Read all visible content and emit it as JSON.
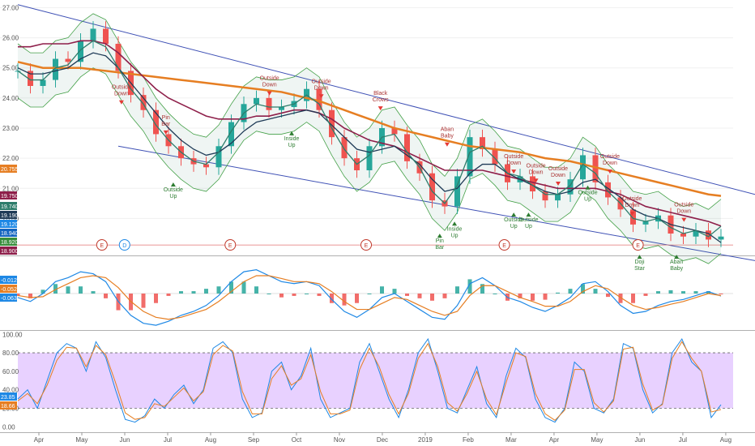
{
  "chart_data": [
    {
      "type": "line",
      "pane": "price",
      "ylim": [
        18.8,
        27.2
      ],
      "y_ticks": [
        "27.00",
        "26.00",
        "25.00",
        "24.00",
        "23.00",
        "22.00",
        "21.00",
        "20.00"
      ],
      "x_ticks": [
        "Apr",
        "May",
        "Jun",
        "Jul",
        "Aug",
        "Sep",
        "Oct",
        "Nov",
        "Dec",
        "2019",
        "Feb",
        "Mar",
        "Apr",
        "May",
        "Jun",
        "Jul",
        "Aug"
      ],
      "price_badges": [
        {
          "text": "20.755",
          "color": "#e67e22",
          "value": 20.755
        },
        {
          "text": "19.750",
          "color": "#8e1f4a",
          "value": 19.75
        },
        {
          "text": "19.740",
          "color": "#2e7d6b",
          "value": 19.74
        },
        {
          "text": "19.190",
          "color": "#1f3b57",
          "value": 19.19
        },
        {
          "text": "19.120",
          "color": "#1e88e5",
          "value": 19.12
        },
        {
          "text": "18.940",
          "color": "#1565c0",
          "value": 18.94
        },
        {
          "text": "18.920",
          "color": "#388e3c",
          "value": 18.92
        },
        {
          "text": "18.900",
          "color": "#8e1f4a",
          "value": 18.9
        }
      ],
      "series": [
        {
          "key": "close",
          "color": "#333333",
          "values": [
            24.9,
            24.4,
            24.6,
            25.3,
            25.2,
            25.9,
            26.3,
            25.8,
            24.9,
            24.1,
            23.6,
            22.8,
            22.4,
            22.0,
            21.8,
            21.7,
            22.4,
            23.2,
            23.8,
            24.0,
            23.6,
            23.7,
            23.9,
            24.3,
            23.6,
            22.7,
            22.0,
            21.6,
            22.4,
            23.0,
            22.8,
            21.9,
            21.5,
            20.6,
            20.4,
            21.4,
            22.7,
            22.3,
            21.8,
            21.2,
            21.4,
            20.9,
            20.6,
            20.8,
            21.3,
            22.1,
            21.2,
            20.7,
            20.3,
            19.8,
            19.9,
            20.1,
            19.5,
            19.4,
            19.6,
            19.3,
            19.4
          ]
        },
        {
          "key": "ma200",
          "color": "#e67e22",
          "values": [
            25.2,
            25.1,
            25.0,
            25.0,
            25.0,
            25.0,
            24.95,
            24.9,
            24.85,
            24.8,
            24.75,
            24.7,
            24.65,
            24.6,
            24.55,
            24.5,
            24.45,
            24.4,
            24.35,
            24.3,
            24.25,
            24.2,
            24.1,
            24.0,
            23.9,
            23.75,
            23.6,
            23.45,
            23.3,
            23.15,
            23.0,
            22.9,
            22.8,
            22.7,
            22.6,
            22.5,
            22.4,
            22.35,
            22.3,
            22.25,
            22.2,
            22.1,
            22.0,
            21.95,
            21.9,
            21.8,
            21.7,
            21.6,
            21.5,
            21.4,
            21.3,
            21.2,
            21.1,
            21.0,
            20.9,
            20.8,
            20.75
          ]
        },
        {
          "key": "ma100",
          "color": "#8e1f4a",
          "values": [
            25.7,
            25.7,
            25.8,
            25.8,
            25.8,
            25.9,
            25.9,
            25.8,
            25.5,
            25.1,
            24.7,
            24.3,
            24.0,
            23.8,
            23.6,
            23.4,
            23.3,
            23.3,
            23.3,
            23.4,
            23.4,
            23.5,
            23.6,
            23.6,
            23.5,
            23.3,
            23.0,
            22.8,
            22.6,
            22.5,
            22.4,
            22.2,
            22.0,
            21.8,
            21.6,
            21.6,
            21.6,
            21.6,
            21.5,
            21.4,
            21.3,
            21.2,
            21.1,
            21.0,
            21.0,
            21.0,
            21.0,
            20.9,
            20.8,
            20.6,
            20.4,
            20.3,
            20.2,
            20.1,
            20.0,
            19.9,
            19.75
          ]
        },
        {
          "key": "ma50",
          "color": "#1f3b57",
          "values": [
            25.0,
            24.8,
            24.8,
            24.9,
            25.0,
            25.3,
            25.5,
            25.4,
            25.0,
            24.5,
            24.0,
            23.5,
            23.0,
            22.6,
            22.3,
            22.1,
            22.2,
            22.5,
            22.9,
            23.2,
            23.3,
            23.4,
            23.5,
            23.6,
            23.5,
            23.1,
            22.7,
            22.3,
            22.2,
            22.3,
            22.4,
            22.1,
            21.8,
            21.3,
            20.9,
            21.0,
            21.5,
            21.8,
            21.8,
            21.5,
            21.3,
            21.1,
            20.9,
            20.8,
            20.9,
            21.2,
            21.3,
            21.0,
            20.7,
            20.3,
            20.1,
            20.0,
            19.8,
            19.7,
            19.6,
            19.5,
            19.2
          ]
        },
        {
          "key": "ma20",
          "color": "#2e7d6b",
          "values": [
            24.9,
            24.6,
            24.6,
            25.0,
            25.1,
            25.6,
            25.9,
            25.7,
            25.0,
            24.3,
            23.8,
            23.1,
            22.6,
            22.2,
            21.9,
            21.8,
            22.2,
            22.9,
            23.5,
            23.8,
            23.7,
            23.7,
            23.8,
            24.1,
            23.8,
            23.0,
            22.3,
            21.8,
            22.1,
            22.7,
            22.8,
            22.2,
            21.7,
            20.9,
            20.5,
            21.1,
            22.2,
            22.4,
            22.0,
            21.5,
            21.4,
            21.1,
            20.8,
            20.8,
            21.1,
            21.8,
            21.5,
            20.9,
            20.5,
            20.0,
            19.9,
            20.0,
            19.7,
            19.5,
            19.6,
            19.4,
            19.74
          ]
        }
      ],
      "channel": {
        "upper": [
          27.1,
          20.8
        ],
        "lower": [
          22.4,
          18.6
        ]
      },
      "pattern_labels": [
        {
          "text": "Outside Down",
          "at": [
            14,
            24.3
          ],
          "kind": "bear"
        },
        {
          "text": "Pin Bar",
          "at": [
            20,
            23.3
          ],
          "kind": "bear"
        },
        {
          "text": "Outside Up",
          "at": [
            21,
            20.9
          ],
          "kind": "bull"
        },
        {
          "text": "Outside Down",
          "at": [
            34,
            24.6
          ],
          "kind": "bear"
        },
        {
          "text": "Inside Up",
          "at": [
            37,
            22.6
          ],
          "kind": "bull"
        },
        {
          "text": "Outside Down",
          "at": [
            41,
            24.5
          ],
          "kind": "bear"
        },
        {
          "text": "Black Crows",
          "at": [
            49,
            24.1
          ],
          "kind": "bear"
        },
        {
          "text": "Aban Baby",
          "at": [
            58,
            22.9
          ],
          "kind": "bear"
        },
        {
          "text": "Pin Bar",
          "at": [
            57,
            19.2
          ],
          "kind": "bull"
        },
        {
          "text": "Inside Up",
          "at": [
            59,
            19.6
          ],
          "kind": "bull"
        },
        {
          "text": "Outside Down",
          "at": [
            67,
            22.0
          ],
          "kind": "bear"
        },
        {
          "text": "Outside Up",
          "at": [
            67,
            19.9
          ],
          "kind": "bull"
        },
        {
          "text": "Outside Up",
          "at": [
            69,
            19.9
          ],
          "kind": "bull"
        },
        {
          "text": "Outside Down",
          "at": [
            70,
            21.7
          ],
          "kind": "bear"
        },
        {
          "text": "Outside Down",
          "at": [
            73,
            21.6
          ],
          "kind": "bear"
        },
        {
          "text": "Outside Up",
          "at": [
            77,
            20.8
          ],
          "kind": "bull"
        },
        {
          "text": "Outside Down",
          "at": [
            80,
            22.0
          ],
          "kind": "bear"
        },
        {
          "text": "Outside Down",
          "at": [
            83,
            20.6
          ],
          "kind": "bear"
        },
        {
          "text": "Outside Down",
          "at": [
            90,
            20.4
          ],
          "kind": "bear"
        },
        {
          "text": "Doji Star",
          "at": [
            84,
            18.5
          ],
          "kind": "bull"
        },
        {
          "text": "Aban Baby",
          "at": [
            89,
            18.5
          ],
          "kind": "bull"
        }
      ],
      "events": [
        {
          "text": "E",
          "x": 0.135,
          "color": "#c0392b"
        },
        {
          "text": "D",
          "x": 0.165,
          "color": "#1e88e5"
        },
        {
          "text": "E",
          "x": 0.305,
          "color": "#c0392b"
        },
        {
          "text": "E",
          "x": 0.485,
          "color": "#c0392b"
        },
        {
          "text": "E",
          "x": 0.668,
          "color": "#c0392b"
        },
        {
          "text": "E",
          "x": 0.845,
          "color": "#c0392b"
        }
      ],
      "horizontal_line": 19.12
    },
    {
      "type": "bar",
      "pane": "macd",
      "ylim": [
        -0.9,
        0.9
      ],
      "badges": [
        {
          "text": "-0.012",
          "color": "#1e88e5",
          "value": -0.012
        },
        {
          "text": "-0.052",
          "color": "#e67e22",
          "value": -0.052
        },
        {
          "text": "-0.063",
          "color": "#1e88e5",
          "value": -0.063
        }
      ],
      "series": [
        {
          "name": "MACD",
          "color": "#1e88e5",
          "values": [
            -0.1,
            -0.2,
            0.0,
            0.3,
            0.4,
            0.55,
            0.5,
            0.3,
            -0.2,
            -0.55,
            -0.75,
            -0.8,
            -0.7,
            -0.55,
            -0.45,
            -0.3,
            -0.05,
            0.3,
            0.55,
            0.6,
            0.45,
            0.3,
            0.25,
            0.3,
            0.2,
            -0.15,
            -0.45,
            -0.6,
            -0.4,
            -0.1,
            0.0,
            -0.2,
            -0.4,
            -0.6,
            -0.65,
            -0.3,
            0.25,
            0.4,
            0.2,
            -0.1,
            -0.2,
            -0.35,
            -0.45,
            -0.3,
            -0.1,
            0.25,
            0.3,
            0.05,
            -0.3,
            -0.5,
            -0.45,
            -0.3,
            -0.2,
            -0.15,
            -0.05,
            0.05,
            -0.063
          ]
        },
        {
          "name": "Signal",
          "color": "#e67e22",
          "values": [
            -0.05,
            -0.1,
            -0.08,
            0.1,
            0.25,
            0.4,
            0.45,
            0.4,
            0.15,
            -0.2,
            -0.45,
            -0.6,
            -0.65,
            -0.6,
            -0.5,
            -0.4,
            -0.2,
            0.05,
            0.3,
            0.45,
            0.45,
            0.38,
            0.3,
            0.3,
            0.25,
            0.05,
            -0.2,
            -0.4,
            -0.4,
            -0.25,
            -0.1,
            -0.15,
            -0.3,
            -0.45,
            -0.55,
            -0.45,
            -0.05,
            0.2,
            0.2,
            0.05,
            -0.1,
            -0.2,
            -0.32,
            -0.32,
            -0.2,
            0.05,
            0.2,
            0.12,
            -0.1,
            -0.3,
            -0.4,
            -0.35,
            -0.27,
            -0.2,
            -0.1,
            0.0,
            -0.052
          ]
        }
      ]
    },
    {
      "type": "line",
      "pane": "stochastic",
      "ylim": [
        -5,
        102
      ],
      "y_ticks": [
        "100.00",
        "80.00",
        "60.00",
        "40.00",
        "20.00",
        "0.00"
      ],
      "band": [
        20,
        80
      ],
      "badges": [
        {
          "text": "23.85",
          "color": "#1e88e5",
          "value": 23.85
        },
        {
          "text": "18.66",
          "color": "#e67e22",
          "value": 18.66
        }
      ],
      "series": [
        {
          "name": "%K",
          "color": "#1e88e5",
          "values": [
            30,
            40,
            20,
            50,
            80,
            90,
            85,
            60,
            92,
            75,
            40,
            8,
            5,
            12,
            30,
            20,
            35,
            45,
            25,
            40,
            85,
            92,
            80,
            30,
            10,
            15,
            60,
            70,
            40,
            55,
            85,
            30,
            10,
            15,
            20,
            70,
            90,
            60,
            30,
            10,
            40,
            80,
            95,
            60,
            20,
            15,
            40,
            65,
            25,
            10,
            55,
            85,
            75,
            30,
            10,
            5,
            20,
            70,
            60,
            20,
            15,
            30,
            90,
            85,
            40,
            15,
            25,
            80,
            95,
            70,
            60,
            10,
            23.85
          ]
        },
        {
          "name": "%D",
          "color": "#e67e22",
          "values": [
            28,
            36,
            25,
            45,
            72,
            86,
            85,
            65,
            88,
            78,
            48,
            15,
            8,
            10,
            25,
            22,
            32,
            42,
            28,
            38,
            78,
            88,
            82,
            38,
            14,
            14,
            52,
            66,
            45,
            52,
            78,
            38,
            14,
            14,
            18,
            62,
            85,
            65,
            35,
            14,
            36,
            74,
            90,
            65,
            26,
            17,
            36,
            60,
            30,
            13,
            48,
            80,
            76,
            36,
            14,
            7,
            18,
            62,
            62,
            26,
            16,
            28,
            84,
            86,
            46,
            18,
            24,
            74,
            92,
            74,
            60,
            16,
            18.66
          ]
        }
      ]
    }
  ]
}
